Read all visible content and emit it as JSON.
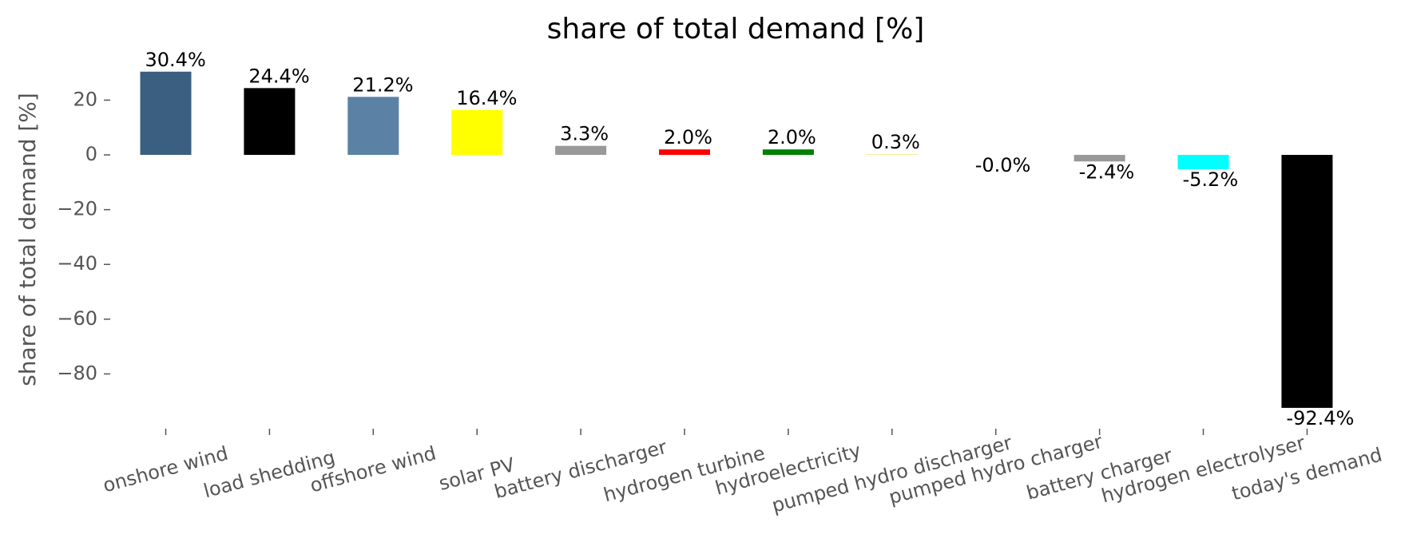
{
  "chart_data": {
    "type": "bar",
    "title": "share of total demand [%]",
    "y_label": "share of total demand [%]",
    "categories": [
      "onshore wind",
      "load shedding",
      "offshore wind",
      "solar PV",
      "battery discharger",
      "hydrogen turbine",
      "hydroelectricity",
      "pumped hydro discharger",
      "pumped hydro charger",
      "battery charger",
      "hydrogen electrolyser",
      "today's demand"
    ],
    "values": [
      30.4,
      24.4,
      21.2,
      16.4,
      3.3,
      2.0,
      2.0,
      0.3,
      -0.0,
      -2.4,
      -5.2,
      -92.4
    ],
    "value_labels": [
      "30.4%",
      "24.4%",
      "21.2%",
      "16.4%",
      "3.3%",
      "2.0%",
      "2.0%",
      "0.3%",
      "-0.0%",
      "-2.4%",
      "-5.2%",
      "-92.4%"
    ],
    "colors": [
      "#3b5f80",
      "#000000",
      "#5b82a5",
      "#ffff00",
      "#999999",
      "#ff0000",
      "#008000",
      "#f7ec9a",
      "#51a3a3",
      "#999999",
      "#00ffff",
      "#000000"
    ],
    "ylim": [
      -100,
      35
    ],
    "yticks": [
      {
        "value": 20,
        "label": "20"
      },
      {
        "value": 0,
        "label": "0"
      },
      {
        "value": -20,
        "label": "−20"
      },
      {
        "value": -40,
        "label": "−40"
      },
      {
        "value": -60,
        "label": "−60"
      },
      {
        "value": -80,
        "label": "−80"
      }
    ],
    "grid": false
  }
}
